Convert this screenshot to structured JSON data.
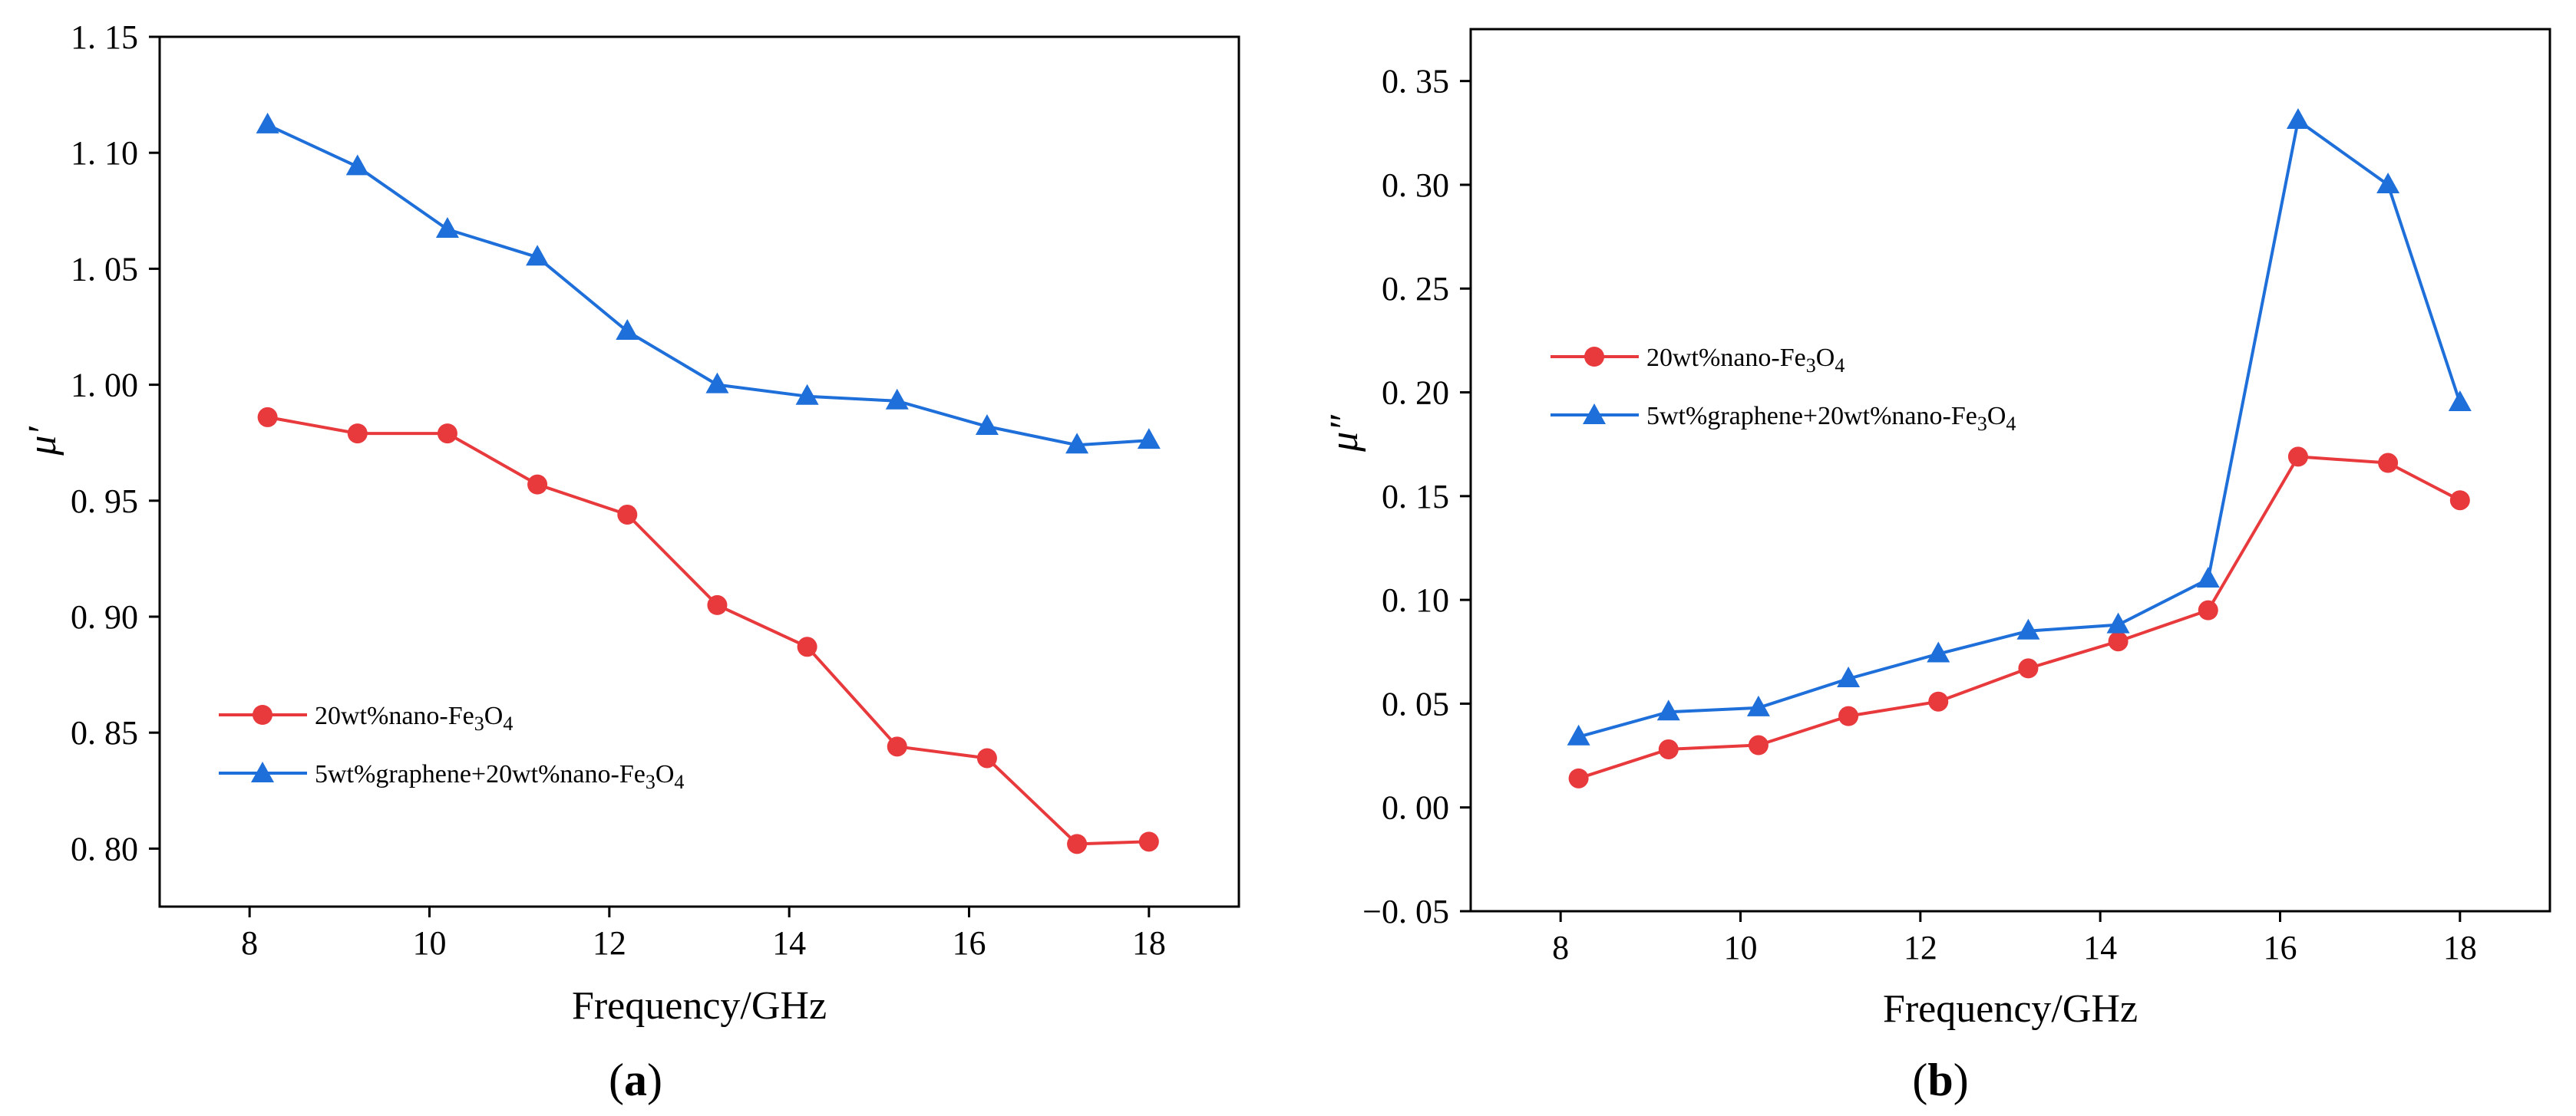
{
  "chart_data": [
    {
      "type": "line",
      "panel_label": "a",
      "title": "",
      "xlabel": "Frequency/GHz",
      "ylabel": "μ′",
      "xlim": [
        7,
        19
      ],
      "ylim": [
        0.775,
        1.15
      ],
      "xticks": [
        8,
        10,
        12,
        14,
        16,
        18
      ],
      "xtick_labels": [
        "8",
        "10",
        "12",
        "14",
        "16",
        "18"
      ],
      "yticks": [
        0.8,
        0.85,
        0.9,
        0.95,
        1.0,
        1.05,
        1.1,
        1.15
      ],
      "ytick_labels": [
        "0. 80",
        "0. 85",
        "0. 90",
        "0. 95",
        "1. 00",
        "1. 05",
        "1. 10",
        "1. 15"
      ],
      "grid": false,
      "legend_position": "lower-left",
      "x": [
        8.2,
        9.2,
        10.2,
        11.2,
        12.2,
        13.2,
        14.2,
        15.2,
        16.2,
        17.2,
        18.0
      ],
      "series": [
        {
          "name": "20wt%nano-Fe3O4",
          "legend_text": "20wt%nano-Fe",
          "legend_sub1": "3",
          "legend_mid": "O",
          "legend_sub2": "4",
          "marker": "circle",
          "color": "#e8393c",
          "values": [
            0.986,
            0.979,
            0.979,
            0.957,
            0.944,
            0.905,
            0.887,
            0.844,
            0.839,
            0.802,
            0.803
          ]
        },
        {
          "name": "5wt%graphene+20wt%nano-Fe3O4",
          "legend_text": "5wt%graphene+20wt%nano-Fe",
          "legend_sub1": "3",
          "legend_mid": "O",
          "legend_sub2": "4",
          "marker": "triangle",
          "color": "#1e6fd9",
          "values": [
            1.112,
            1.094,
            1.067,
            1.055,
            1.023,
            1.0,
            0.995,
            0.993,
            0.982,
            0.974,
            0.976
          ]
        }
      ]
    },
    {
      "type": "line",
      "panel_label": "b",
      "title": "",
      "xlabel": "Frequency/GHz",
      "ylabel": "μ″",
      "xlim": [
        7,
        19
      ],
      "ylim": [
        -0.05,
        0.375
      ],
      "xticks": [
        8,
        10,
        12,
        14,
        16,
        18
      ],
      "xtick_labels": [
        "8",
        "10",
        "12",
        "14",
        "16",
        "18"
      ],
      "yticks": [
        -0.05,
        0.0,
        0.05,
        0.1,
        0.15,
        0.2,
        0.25,
        0.3,
        0.35
      ],
      "ytick_labels": [
        "−0. 05",
        "0. 00",
        "0. 05",
        "0. 10",
        "0. 15",
        "0. 20",
        "0. 25",
        "0. 30",
        "0. 35"
      ],
      "grid": false,
      "legend_position": "middle-left",
      "x": [
        8.2,
        9.2,
        10.2,
        11.2,
        12.2,
        13.2,
        14.2,
        15.2,
        16.2,
        17.2,
        18.0
      ],
      "series": [
        {
          "name": "20wt%nano-Fe3O4",
          "legend_text": "20wt%nano-Fe",
          "legend_sub1": "3",
          "legend_mid": "O",
          "legend_sub2": "4",
          "marker": "circle",
          "color": "#e8393c",
          "values": [
            0.014,
            0.028,
            0.03,
            0.044,
            0.051,
            0.067,
            0.08,
            0.095,
            0.169,
            0.166,
            0.148
          ]
        },
        {
          "name": "5wt%graphene+20wt%nano-Fe3O4",
          "legend_text": "5wt%graphene+20wt%nano-Fe",
          "legend_sub1": "3",
          "legend_mid": "O",
          "legend_sub2": "4",
          "marker": "triangle",
          "color": "#1e6fd9",
          "values": [
            0.034,
            0.046,
            0.048,
            0.062,
            0.074,
            0.085,
            0.088,
            0.11,
            0.331,
            0.3,
            0.195
          ]
        }
      ]
    }
  ]
}
